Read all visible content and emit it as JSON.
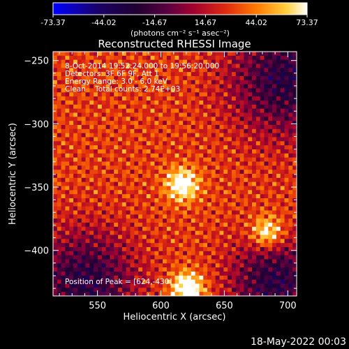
{
  "chart_data": {
    "type": "heatmap",
    "title": "Reconstructed RHESSI Image",
    "xlabel": "Heliocentric X (arcsec)",
    "ylabel": "Heliocentric Y (arcsec)",
    "xlim": [
      515,
      707
    ],
    "ylim": [
      -436,
      -243
    ],
    "x_ticks": [
      550,
      600,
      650,
      700
    ],
    "y_ticks": [
      -250,
      -300,
      -350,
      -400
    ],
    "colorbar": {
      "min": -73.37,
      "max": 73.37,
      "tick_labels": [
        "-73.37",
        "-44.02",
        "-14.67",
        "14.67",
        "44.02",
        "73.37"
      ],
      "tick_values": [
        -73.37,
        -44.02,
        -14.67,
        14.67,
        44.02,
        73.37
      ],
      "units": "(photons cm⁻² s⁻¹ asec⁻²)",
      "colors": [
        "#0000ff",
        "#1a0066",
        "#000000",
        "#5a0040",
        "#c0142a",
        "#f04a00",
        "#ff9a00",
        "#ffe060",
        "#ffffff"
      ]
    },
    "annotations": [
      "8-Oct-2014 19:52:24.000 to 19:56:20.000",
      "Detectors: 3F 6F 9F, Att 1",
      "Energy Range: 3.0 - 6.0 keV",
      "Clean    Total counts: 2.74E+03",
      "Position of Peak = [624,-430]"
    ],
    "sources": [
      {
        "x": 617,
        "y": -348,
        "peak": 66
      },
      {
        "x": 684,
        "y": -386,
        "peak": 58
      },
      {
        "x": 621,
        "y": -430,
        "peak": 73.37
      }
    ],
    "dark_regions": [
      {
        "x": 700,
        "y": -265,
        "radius": 45
      },
      {
        "x": 540,
        "y": -425,
        "radius": 40
      },
      {
        "x": 690,
        "y": -425,
        "radius": 35
      }
    ]
  },
  "footer": {
    "timestamp": "18-May-2022 00:03"
  }
}
